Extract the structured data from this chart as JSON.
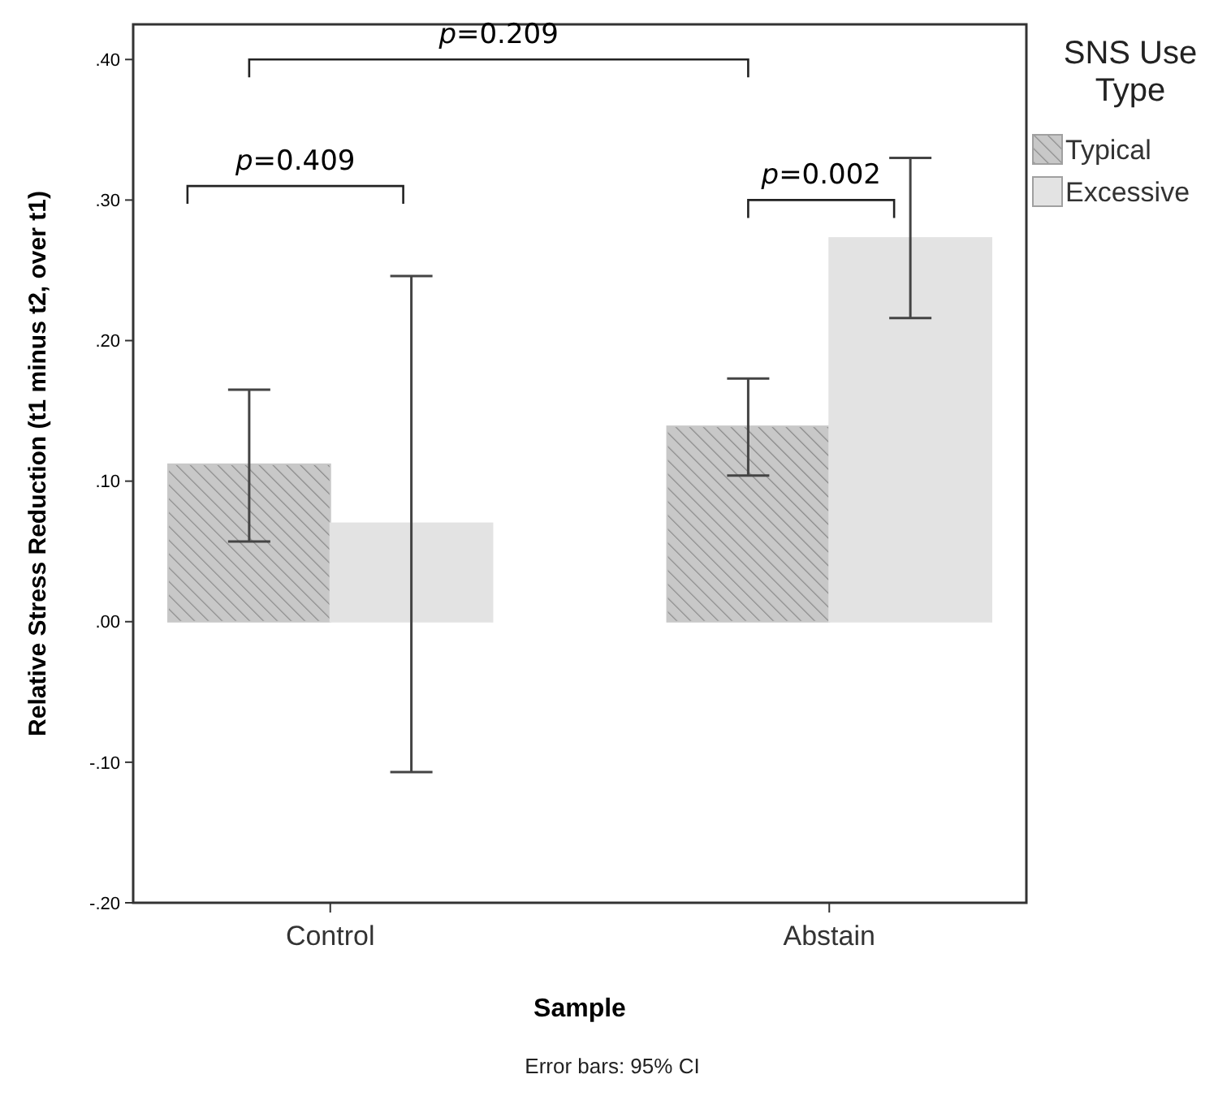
{
  "chart_data": {
    "type": "bar",
    "xlabel": "Sample",
    "ylabel": "Relative Stress Reduction (t1 minus t2, over t1)",
    "legend_title": "SNS Use Type",
    "categories": [
      "Control",
      "Abstain"
    ],
    "series": [
      {
        "name": "Typical",
        "color": "#c8c8c8",
        "values": [
          0.112,
          0.139
        ],
        "errors": [
          [
            0.057,
            0.165
          ],
          [
            0.104,
            0.173
          ]
        ]
      },
      {
        "name": "Excessive",
        "color": "#e3e3e3",
        "values": [
          0.07,
          0.273
        ],
        "errors": [
          [
            -0.107,
            0.246
          ],
          [
            0.216,
            0.33
          ]
        ]
      }
    ],
    "ylim": [
      -0.2,
      0.425
    ],
    "yticks": [
      {
        "value": -0.2,
        "label": "-.20"
      },
      {
        "value": -0.1,
        "label": "-.10"
      },
      {
        "value": 0,
        "label": ".00"
      },
      {
        "value": 0.1,
        "label": ".10"
      },
      {
        "value": 0.2,
        "label": ".20"
      },
      {
        "value": 0.3,
        "label": ".30"
      },
      {
        "value": 0.4,
        "label": ".40"
      }
    ],
    "annotations": [
      "p=0.409",
      "p=0.209",
      "p=0.002",
      "Error bars: 95% CI"
    ],
    "legend": "top right",
    "grid": false
  }
}
